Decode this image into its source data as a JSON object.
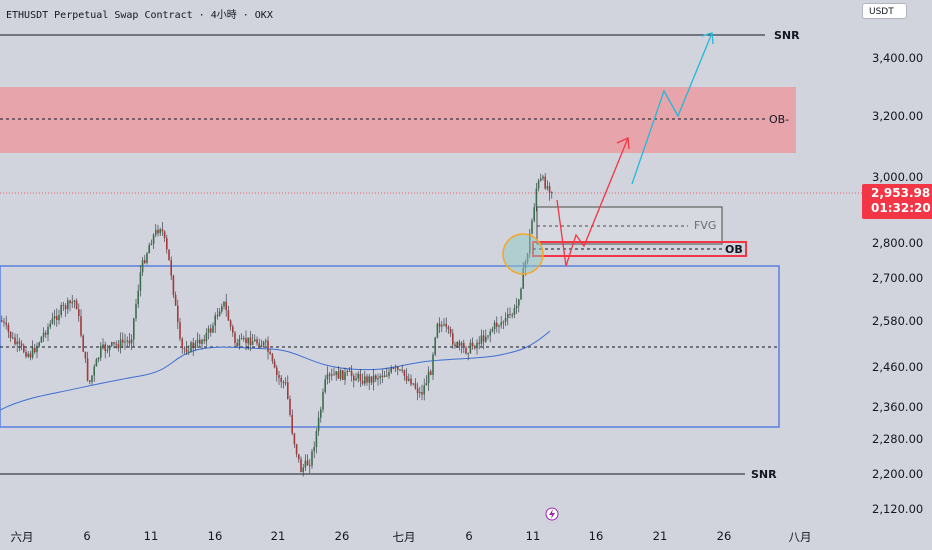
{
  "header": {
    "title": "ETHUSDT Perpetual Swap Contract · 4小時 · OKX"
  },
  "unit_label": "USDT",
  "price_tag": {
    "price": "2,953.98",
    "countdown": "01:32:20",
    "color": "#f23645"
  },
  "y_axis_labels": [
    "3,400.00",
    "3,200.00",
    "3,000.00",
    "2,800.00",
    "2,700.00",
    "2,580.00",
    "2,460.00",
    "2,360.00",
    "2,280.00",
    "2,200.00",
    "2,120.00"
  ],
  "x_axis_labels": [
    "六月",
    "6",
    "11",
    "16",
    "21",
    "26",
    "七月",
    "6",
    "11",
    "16",
    "21",
    "26",
    "八月"
  ],
  "annotations": {
    "snr_top": "SNR",
    "ob_bearish": "OB-",
    "fvg": "FVG",
    "ob_bullish": "OB",
    "snr_bottom": "SNR"
  },
  "colors": {
    "background": "#d1d4dc",
    "bullish_candle": "#3a6e4a",
    "bearish_candle": "#a33a3a",
    "moving_average": "#3d6fd1",
    "ob_zone": "#e8a1a8",
    "range_box": "#5b7fe0",
    "projection_red": "#f23645",
    "projection_cyan": "#22b8d8",
    "highlight_circle": "#f5a623"
  },
  "icons": [
    "lightning-icon"
  ]
}
